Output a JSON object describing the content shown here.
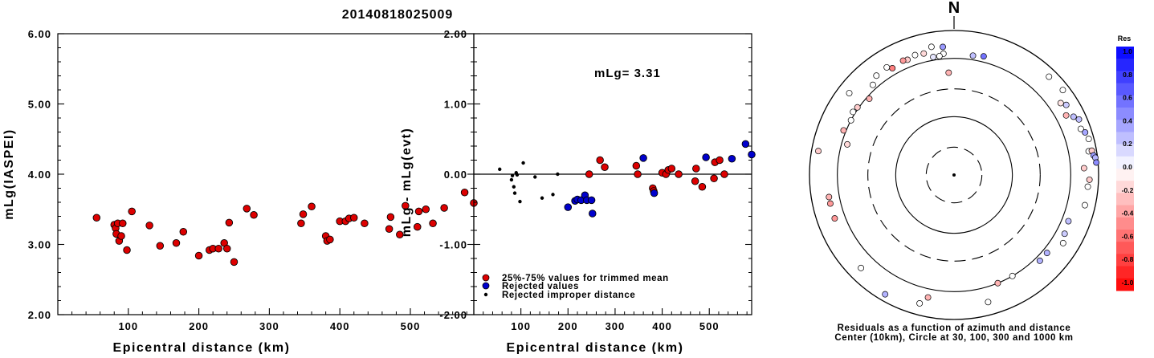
{
  "title": "20140818025009",
  "chart_data": [
    {
      "type": "scatter",
      "xlabel": "Epicentral distance (km)",
      "ylabel": "mLg(IASPEI)",
      "xlim": [
        0,
        590
      ],
      "ylim": [
        2.0,
        6.0
      ],
      "xticks": [
        100,
        200,
        300,
        400,
        500
      ],
      "xtick_labels": [
        "100",
        "200",
        "300",
        "400",
        "500"
      ],
      "yticks": [
        2,
        3,
        4,
        5,
        6
      ],
      "ytick_labels": [
        "2.00",
        "3.00",
        "4.00",
        "5.00",
        "6.00"
      ],
      "series": [
        {
          "color": "#dd0000",
          "points": [
            [
              55,
              3.38
            ],
            [
              80,
              3.28
            ],
            [
              82,
              3.23
            ],
            [
              83,
              3.15
            ],
            [
              85,
              3.3
            ],
            [
              87,
              3.05
            ],
            [
              90,
              3.12
            ],
            [
              92,
              3.3
            ],
            [
              98,
              2.92
            ],
            [
              105,
              3.47
            ],
            [
              130,
              3.27
            ],
            [
              145,
              2.98
            ],
            [
              168,
              3.02
            ],
            [
              178,
              3.18
            ],
            [
              200,
              2.84
            ],
            [
              215,
              2.92
            ],
            [
              220,
              2.94
            ],
            [
              228,
              2.94
            ],
            [
              236,
              3.02
            ],
            [
              240,
              2.94
            ],
            [
              243,
              3.31
            ],
            [
              250,
              2.75
            ],
            [
              268,
              3.51
            ],
            [
              278,
              3.42
            ],
            [
              345,
              3.3
            ],
            [
              348,
              3.43
            ],
            [
              360,
              3.54
            ],
            [
              380,
              3.12
            ],
            [
              382,
              3.05
            ],
            [
              386,
              3.07
            ],
            [
              400,
              3.33
            ],
            [
              408,
              3.33
            ],
            [
              413,
              3.37
            ],
            [
              420,
              3.38
            ],
            [
              435,
              3.3
            ],
            [
              470,
              3.22
            ],
            [
              472,
              3.39
            ],
            [
              485,
              3.14
            ],
            [
              493,
              3.55
            ],
            [
              510,
              3.25
            ],
            [
              512,
              3.47
            ],
            [
              522,
              3.5
            ],
            [
              532,
              3.3
            ],
            [
              548,
              3.52
            ],
            [
              577,
              3.74
            ],
            [
              590,
              3.59
            ]
          ]
        }
      ]
    },
    {
      "type": "scatter",
      "xlabel": "Epicentral distance (km)",
      "ylabel": "mLg - mLg(evt)",
      "xlim": [
        0,
        590
      ],
      "ylim": [
        -2.0,
        2.0
      ],
      "xticks": [
        100,
        200,
        300,
        400,
        500
      ],
      "xtick_labels": [
        "100",
        "200",
        "300",
        "400",
        "500"
      ],
      "yticks": [
        -2,
        -1,
        0,
        1,
        2
      ],
      "ytick_labels": [
        "-2.00",
        "-1.00",
        "0.00",
        "1.00",
        "2.00"
      ],
      "reference_line_y": 0,
      "annotation": "mLg= 3.31",
      "series": [
        {
          "name": "25%-75% values for trimmed mean",
          "color": "#dd0000",
          "marker": "large",
          "points": [
            [
              245,
              0.0
            ],
            [
              268,
              0.2
            ],
            [
              278,
              0.1
            ],
            [
              345,
              0.12
            ],
            [
              348,
              0.0
            ],
            [
              380,
              -0.2
            ],
            [
              382,
              -0.24
            ],
            [
              400,
              0.02
            ],
            [
              408,
              0.0
            ],
            [
              413,
              0.06
            ],
            [
              420,
              0.08
            ],
            [
              435,
              0.0
            ],
            [
              470,
              -0.1
            ],
            [
              472,
              0.08
            ],
            [
              485,
              -0.18
            ],
            [
              510,
              -0.06
            ],
            [
              512,
              0.17
            ],
            [
              522,
              0.2
            ],
            [
              532,
              0.0
            ]
          ]
        },
        {
          "name": "Rejected values",
          "color": "#0000cc",
          "marker": "large",
          "points": [
            [
              200,
              -0.47
            ],
            [
              215,
              -0.38
            ],
            [
              220,
              -0.36
            ],
            [
              228,
              -0.37
            ],
            [
              236,
              -0.3
            ],
            [
              240,
              -0.37
            ],
            [
              250,
              -0.37
            ],
            [
              252,
              -0.56
            ],
            [
              360,
              0.23
            ],
            [
              383,
              -0.27
            ],
            [
              493,
              0.24
            ],
            [
              548,
              0.22
            ],
            [
              577,
              0.43
            ],
            [
              590,
              0.28
            ]
          ]
        },
        {
          "name": "Rejected improper distance",
          "color": "#000000",
          "marker": "small",
          "points": [
            [
              55,
              0.07
            ],
            [
              80,
              -0.08
            ],
            [
              82,
              -0.02
            ],
            [
              85,
              -0.18
            ],
            [
              87,
              -0.27
            ],
            [
              90,
              0.02
            ],
            [
              92,
              -0.01
            ],
            [
              98,
              -0.39
            ],
            [
              105,
              0.16
            ],
            [
              130,
              -0.04
            ],
            [
              145,
              -0.34
            ],
            [
              168,
              -0.29
            ],
            [
              178,
              0.0
            ]
          ]
        }
      ]
    },
    {
      "type": "scatter",
      "subtype": "polar",
      "north_label": "N",
      "caption_line1": "Residuals as a function of azimuth and distance",
      "caption_line2": "Center (10km), Circle at 30, 100, 300 and 1000 km",
      "rings_km": [
        30,
        100,
        300,
        1000
      ],
      "ring_styles": [
        "dashed",
        "solid",
        "dashed",
        "solid"
      ],
      "colorbar": {
        "title": "Res",
        "min": -1.0,
        "max": 1.0,
        "tick_labels": [
          "1.0",
          "0.8",
          "0.6",
          "0.4",
          "0.2",
          "0.0",
          "-0.2",
          "-0.4",
          "-0.6",
          "-0.8",
          "-1.0"
        ],
        "positive_color": "#0000ff",
        "negative_color": "#ff0000"
      },
      "points": [
        {
          "az": 9,
          "dist": 1180,
          "res": 0.25
        },
        {
          "az": 14,
          "dist": 1250,
          "res": 0.55
        },
        {
          "az": -5,
          "dist": 1220,
          "res": 0.0
        },
        {
          "az": -7,
          "dist": 1130,
          "res": 0.0
        },
        {
          "az": -10,
          "dist": 1130,
          "res": 0.1
        },
        {
          "az": 44,
          "dist": 2200,
          "res": 0.0
        },
        {
          "az": 52,
          "dist": 2320,
          "res": 0.0
        },
        {
          "az": 56,
          "dist": 1600,
          "res": -0.1
        },
        {
          "az": 62,
          "dist": 1500,
          "res": -0.3
        },
        {
          "az": 64,
          "dist": 1900,
          "res": 0.25
        },
        {
          "az": 58,
          "dist": 1850,
          "res": 0.2
        },
        {
          "az": 66,
          "dist": 2200,
          "res": 0.25
        },
        {
          "az": 70,
          "dist": 2050,
          "res": 0.0
        },
        {
          "az": 72,
          "dist": 2300,
          "res": 0.35
        },
        {
          "az": 75,
          "dist": 2450,
          "res": 0.0
        },
        {
          "az": 80,
          "dist": 2200,
          "res": 0.0
        },
        {
          "az": 80,
          "dist": 2500,
          "res": -0.2
        },
        {
          "az": 82,
          "dist": 2600,
          "res": 0.4
        },
        {
          "az": 83,
          "dist": 2750,
          "res": 0.3
        },
        {
          "az": 85,
          "dist": 2800,
          "res": 0.45
        },
        {
          "az": 87,
          "dist": 1700,
          "res": -0.2
        },
        {
          "az": 92,
          "dist": 2100,
          "res": -0.2
        },
        {
          "az": 95,
          "dist": 2000,
          "res": 0.0
        },
        {
          "az": 103,
          "dist": 2000,
          "res": 0.0
        },
        {
          "az": 112,
          "dist": 1300,
          "res": 0.25
        },
        {
          "az": 118,
          "dist": 1400,
          "res": 0.2
        },
        {
          "az": 122,
          "dist": 1600,
          "res": 0.0
        },
        {
          "az": 135,
          "dist": 1200,
          "res": 0.3
        },
        {
          "az": 150,
          "dist": 1000,
          "res": 0.0
        },
        {
          "az": 158,
          "dist": 1000,
          "res": -0.3
        },
        {
          "az": -3,
          "dist": 570,
          "res": -0.3
        },
        {
          "az": -5,
          "dist": 1600,
          "res": 0.4
        },
        {
          "az": -10,
          "dist": 1700,
          "res": 0.0
        },
        {
          "az": -14,
          "dist": 1400,
          "res": -0.15
        },
        {
          "az": -18,
          "dist": 1450,
          "res": 0.0
        },
        {
          "az": -22,
          "dist": 1350,
          "res": -0.2
        },
        {
          "az": -24,
          "dist": 1400,
          "res": -0.4
        },
        {
          "az": -30,
          "dist": 1300,
          "res": -0.5
        },
        {
          "az": -32,
          "dist": 1500,
          "res": 0.0
        },
        {
          "az": -38,
          "dist": 1450,
          "res": 0.0
        },
        {
          "az": -42,
          "dist": 1200,
          "res": 0.0
        },
        {
          "az": -55,
          "dist": 1050,
          "res": -0.2
        },
        {
          "az": -58,
          "dist": 1100,
          "res": 0.0
        },
        {
          "az": -62,
          "dist": 1000,
          "res": 0.0
        },
        {
          "az": -68,
          "dist": 1100,
          "res": -0.3
        },
        {
          "az": -80,
          "dist": 2300,
          "res": -0.2
        },
        {
          "az": -100,
          "dist": 1500,
          "res": -0.3
        },
        {
          "az": -103,
          "dist": 1500,
          "res": -0.4
        },
        {
          "az": -110,
          "dist": 1500,
          "res": -0.4
        },
        {
          "az": -135,
          "dist": 1800,
          "res": 0.0
        },
        {
          "az": -150,
          "dist": 2300,
          "res": 0.3
        },
        {
          "az": -165,
          "dist": 1900,
          "res": 0.0
        },
        {
          "az": -168,
          "dist": 1400,
          "res": -0.3
        },
        {
          "az": 165,
          "dist": 1800,
          "res": 0.0
        },
        {
          "az": 130,
          "dist": 1200,
          "res": 0.3
        },
        {
          "az": -52,
          "dist": 1900,
          "res": 0.0
        },
        {
          "az": -74,
          "dist": 800,
          "res": -0.15
        },
        {
          "az": -48,
          "dist": 900,
          "res": -0.3
        }
      ]
    }
  ],
  "legend": [
    {
      "label": "25%-75% values for trimmed mean",
      "color": "#dd0000"
    },
    {
      "label": "Rejected values",
      "color": "#0000cc"
    },
    {
      "label": "Rejected improper distance",
      "color": "#000000"
    }
  ]
}
